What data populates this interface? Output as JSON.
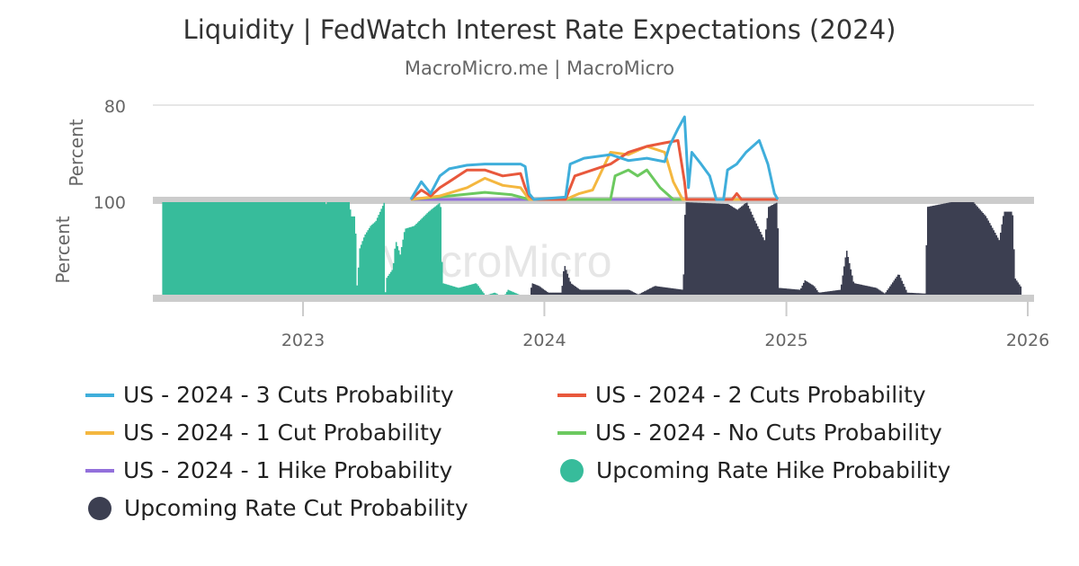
{
  "chart_data": [
    {
      "type": "line",
      "title": "Liquidity | FedWatch Interest Rate Expectations (2024)",
      "subtitle": "MacroMicro.me | MacroMicro",
      "ylabel": "Percent",
      "ylim": [
        0,
        80
      ],
      "yticks": [
        "80"
      ],
      "grid": true,
      "series": [
        {
          "name": "US - 2024 - 3 Cuts Probability",
          "color": "#3FAEDB",
          "points": [
            [
              "2023-06-13",
              0
            ],
            [
              "2023-06-29",
              15
            ],
            [
              "2023-07-13",
              5
            ],
            [
              "2023-07-27",
              20
            ],
            [
              "2023-08-10",
              26
            ],
            [
              "2023-09-06",
              29
            ],
            [
              "2023-10-03",
              30
            ],
            [
              "2023-10-30",
              30
            ],
            [
              "2023-11-26",
              30
            ],
            [
              "2023-12-03",
              28
            ],
            [
              "2023-12-09",
              5
            ],
            [
              "2023-12-16",
              0
            ],
            [
              "2024-02-02",
              2
            ],
            [
              "2024-02-09",
              30
            ],
            [
              "2024-03-01",
              35
            ],
            [
              "2024-04-10",
              38
            ],
            [
              "2024-05-07",
              33
            ],
            [
              "2024-06-04",
              35
            ],
            [
              "2024-07-01",
              32
            ],
            [
              "2024-07-08",
              45
            ],
            [
              "2024-07-21",
              60
            ],
            [
              "2024-07-31",
              70
            ],
            [
              "2024-08-06",
              10
            ],
            [
              "2024-08-11",
              40
            ],
            [
              "2024-08-25",
              30
            ],
            [
              "2024-09-07",
              20
            ],
            [
              "2024-09-17",
              0
            ],
            [
              "2024-09-28",
              0
            ],
            [
              "2024-10-04",
              25
            ],
            [
              "2024-10-18",
              30
            ],
            [
              "2024-11-01",
              40
            ],
            [
              "2024-11-21",
              50
            ],
            [
              "2024-12-04",
              30
            ],
            [
              "2024-12-14",
              5
            ],
            [
              "2024-12-19",
              0
            ]
          ]
        },
        {
          "name": "US - 2024 - 2 Cuts Probability",
          "color": "#E8583C",
          "points": [
            [
              "2023-06-13",
              0
            ],
            [
              "2023-06-29",
              8
            ],
            [
              "2023-07-13",
              3
            ],
            [
              "2023-07-27",
              10
            ],
            [
              "2023-08-10",
              15
            ],
            [
              "2023-09-06",
              25
            ],
            [
              "2023-10-03",
              25
            ],
            [
              "2023-10-30",
              20
            ],
            [
              "2023-11-26",
              22
            ],
            [
              "2023-12-03",
              10
            ],
            [
              "2023-12-09",
              3
            ],
            [
              "2023-12-16",
              0
            ],
            [
              "2024-02-02",
              0
            ],
            [
              "2024-02-16",
              20
            ],
            [
              "2024-03-14",
              25
            ],
            [
              "2024-04-10",
              30
            ],
            [
              "2024-05-07",
              40
            ],
            [
              "2024-06-04",
              45
            ],
            [
              "2024-07-01",
              48
            ],
            [
              "2024-07-21",
              50
            ],
            [
              "2024-07-31",
              15
            ],
            [
              "2024-08-03",
              0
            ],
            [
              "2024-10-11",
              0
            ],
            [
              "2024-10-18",
              5
            ],
            [
              "2024-10-25",
              0
            ],
            [
              "2024-12-19",
              0
            ]
          ]
        },
        {
          "name": "US - 2024 - 1 Cut Probability",
          "color": "#F4B73F",
          "points": [
            [
              "2023-06-13",
              0
            ],
            [
              "2023-07-27",
              3
            ],
            [
              "2023-09-06",
              10
            ],
            [
              "2023-10-03",
              18
            ],
            [
              "2023-10-30",
              12
            ],
            [
              "2023-11-26",
              10
            ],
            [
              "2023-12-09",
              0
            ],
            [
              "2024-02-02",
              0
            ],
            [
              "2024-02-23",
              5
            ],
            [
              "2024-03-14",
              8
            ],
            [
              "2024-04-10",
              40
            ],
            [
              "2024-05-07",
              38
            ],
            [
              "2024-06-04",
              45
            ],
            [
              "2024-07-01",
              40
            ],
            [
              "2024-07-14",
              15
            ],
            [
              "2024-07-28",
              0
            ],
            [
              "2024-12-19",
              0
            ]
          ]
        },
        {
          "name": "US - 2024 - No Cuts Probability",
          "color": "#6CC95F",
          "points": [
            [
              "2023-06-13",
              0
            ],
            [
              "2023-08-10",
              3
            ],
            [
              "2023-10-03",
              6
            ],
            [
              "2023-11-13",
              4
            ],
            [
              "2023-12-09",
              0
            ],
            [
              "2024-04-10",
              0
            ],
            [
              "2024-04-17",
              20
            ],
            [
              "2024-05-07",
              25
            ],
            [
              "2024-05-21",
              20
            ],
            [
              "2024-06-04",
              25
            ],
            [
              "2024-06-24",
              10
            ],
            [
              "2024-07-14",
              0
            ],
            [
              "2024-12-19",
              0
            ]
          ]
        },
        {
          "name": "US - 2024 - 1 Hike Probability",
          "color": "#9370DB",
          "points": [
            [
              "2023-06-13",
              0
            ],
            [
              "2024-12-19",
              0
            ]
          ]
        }
      ]
    },
    {
      "type": "bar",
      "ylabel": "Percent",
      "ylim": [
        0,
        100
      ],
      "yticks": [
        "100"
      ],
      "xticks": [
        "2023",
        "2024",
        "2025",
        "2026"
      ],
      "series": [
        {
          "name": "Upcoming Rate Hike Probability",
          "color": "#37BC9B",
          "points": [
            [
              "2022-06-02",
              100
            ],
            [
              "2023-02-02",
              100
            ],
            [
              "2023-02-03",
              90
            ],
            [
              "2023-02-04",
              100
            ],
            [
              "2023-03-12",
              100
            ],
            [
              "2023-03-13",
              85
            ],
            [
              "2023-03-20",
              85
            ],
            [
              "2023-03-23",
              5
            ],
            [
              "2023-03-26",
              50
            ],
            [
              "2023-04-03",
              65
            ],
            [
              "2023-04-12",
              75
            ],
            [
              "2023-04-20",
              80
            ],
            [
              "2023-05-03",
              100
            ],
            [
              "2023-05-04",
              0
            ],
            [
              "2023-05-06",
              20
            ],
            [
              "2023-05-16",
              30
            ],
            [
              "2023-05-20",
              60
            ],
            [
              "2023-05-27",
              45
            ],
            [
              "2023-06-03",
              72
            ],
            [
              "2023-06-17",
              75
            ],
            [
              "2023-07-09",
              90
            ],
            [
              "2023-07-27",
              100
            ],
            [
              "2023-07-30",
              15
            ],
            [
              "2023-08-23",
              10
            ],
            [
              "2023-09-19",
              15
            ],
            [
              "2023-10-03",
              2
            ],
            [
              "2023-10-17",
              5
            ],
            [
              "2023-10-30",
              0
            ],
            [
              "2023-11-06",
              8
            ],
            [
              "2023-11-26",
              2
            ],
            [
              "2023-12-09",
              0
            ]
          ]
        },
        {
          "name": "Upcoming Rate Cut Probability",
          "color": "#3C3F51",
          "points": [
            [
              "2023-12-09",
              0
            ],
            [
              "2023-12-12",
              15
            ],
            [
              "2023-12-23",
              12
            ],
            [
              "2024-01-06",
              5
            ],
            [
              "2024-01-26",
              5
            ],
            [
              "2024-01-30",
              35
            ],
            [
              "2024-02-09",
              15
            ],
            [
              "2024-02-23",
              8
            ],
            [
              "2024-05-07",
              8
            ],
            [
              "2024-05-21",
              3
            ],
            [
              "2024-06-15",
              12
            ],
            [
              "2024-07-28",
              8
            ],
            [
              "2024-07-31",
              100
            ],
            [
              "2024-10-04",
              98
            ],
            [
              "2024-10-18",
              92
            ],
            [
              "2024-11-01",
              100
            ],
            [
              "2024-11-14",
              80
            ],
            [
              "2024-11-28",
              60
            ],
            [
              "2024-12-04",
              95
            ],
            [
              "2024-12-18",
              100
            ],
            [
              "2024-12-19",
              10
            ],
            [
              "2025-01-21",
              8
            ],
            [
              "2025-01-28",
              18
            ],
            [
              "2025-02-11",
              12
            ],
            [
              "2025-02-18",
              5
            ],
            [
              "2025-03-23",
              8
            ],
            [
              "2025-04-01",
              50
            ],
            [
              "2025-04-12",
              15
            ],
            [
              "2025-05-16",
              10
            ],
            [
              "2025-05-29",
              4
            ],
            [
              "2025-06-19",
              25
            ],
            [
              "2025-07-02",
              5
            ],
            [
              "2025-07-29",
              4
            ],
            [
              "2025-08-01",
              95
            ],
            [
              "2025-09-06",
              100
            ],
            [
              "2025-10-10",
              100
            ],
            [
              "2025-10-29",
              85
            ],
            [
              "2025-11-18",
              60
            ],
            [
              "2025-11-25",
              90
            ],
            [
              "2025-12-08",
              90
            ],
            [
              "2025-12-12",
              20
            ],
            [
              "2025-12-22",
              10
            ]
          ]
        }
      ]
    }
  ],
  "watermark": "MacroMicro"
}
